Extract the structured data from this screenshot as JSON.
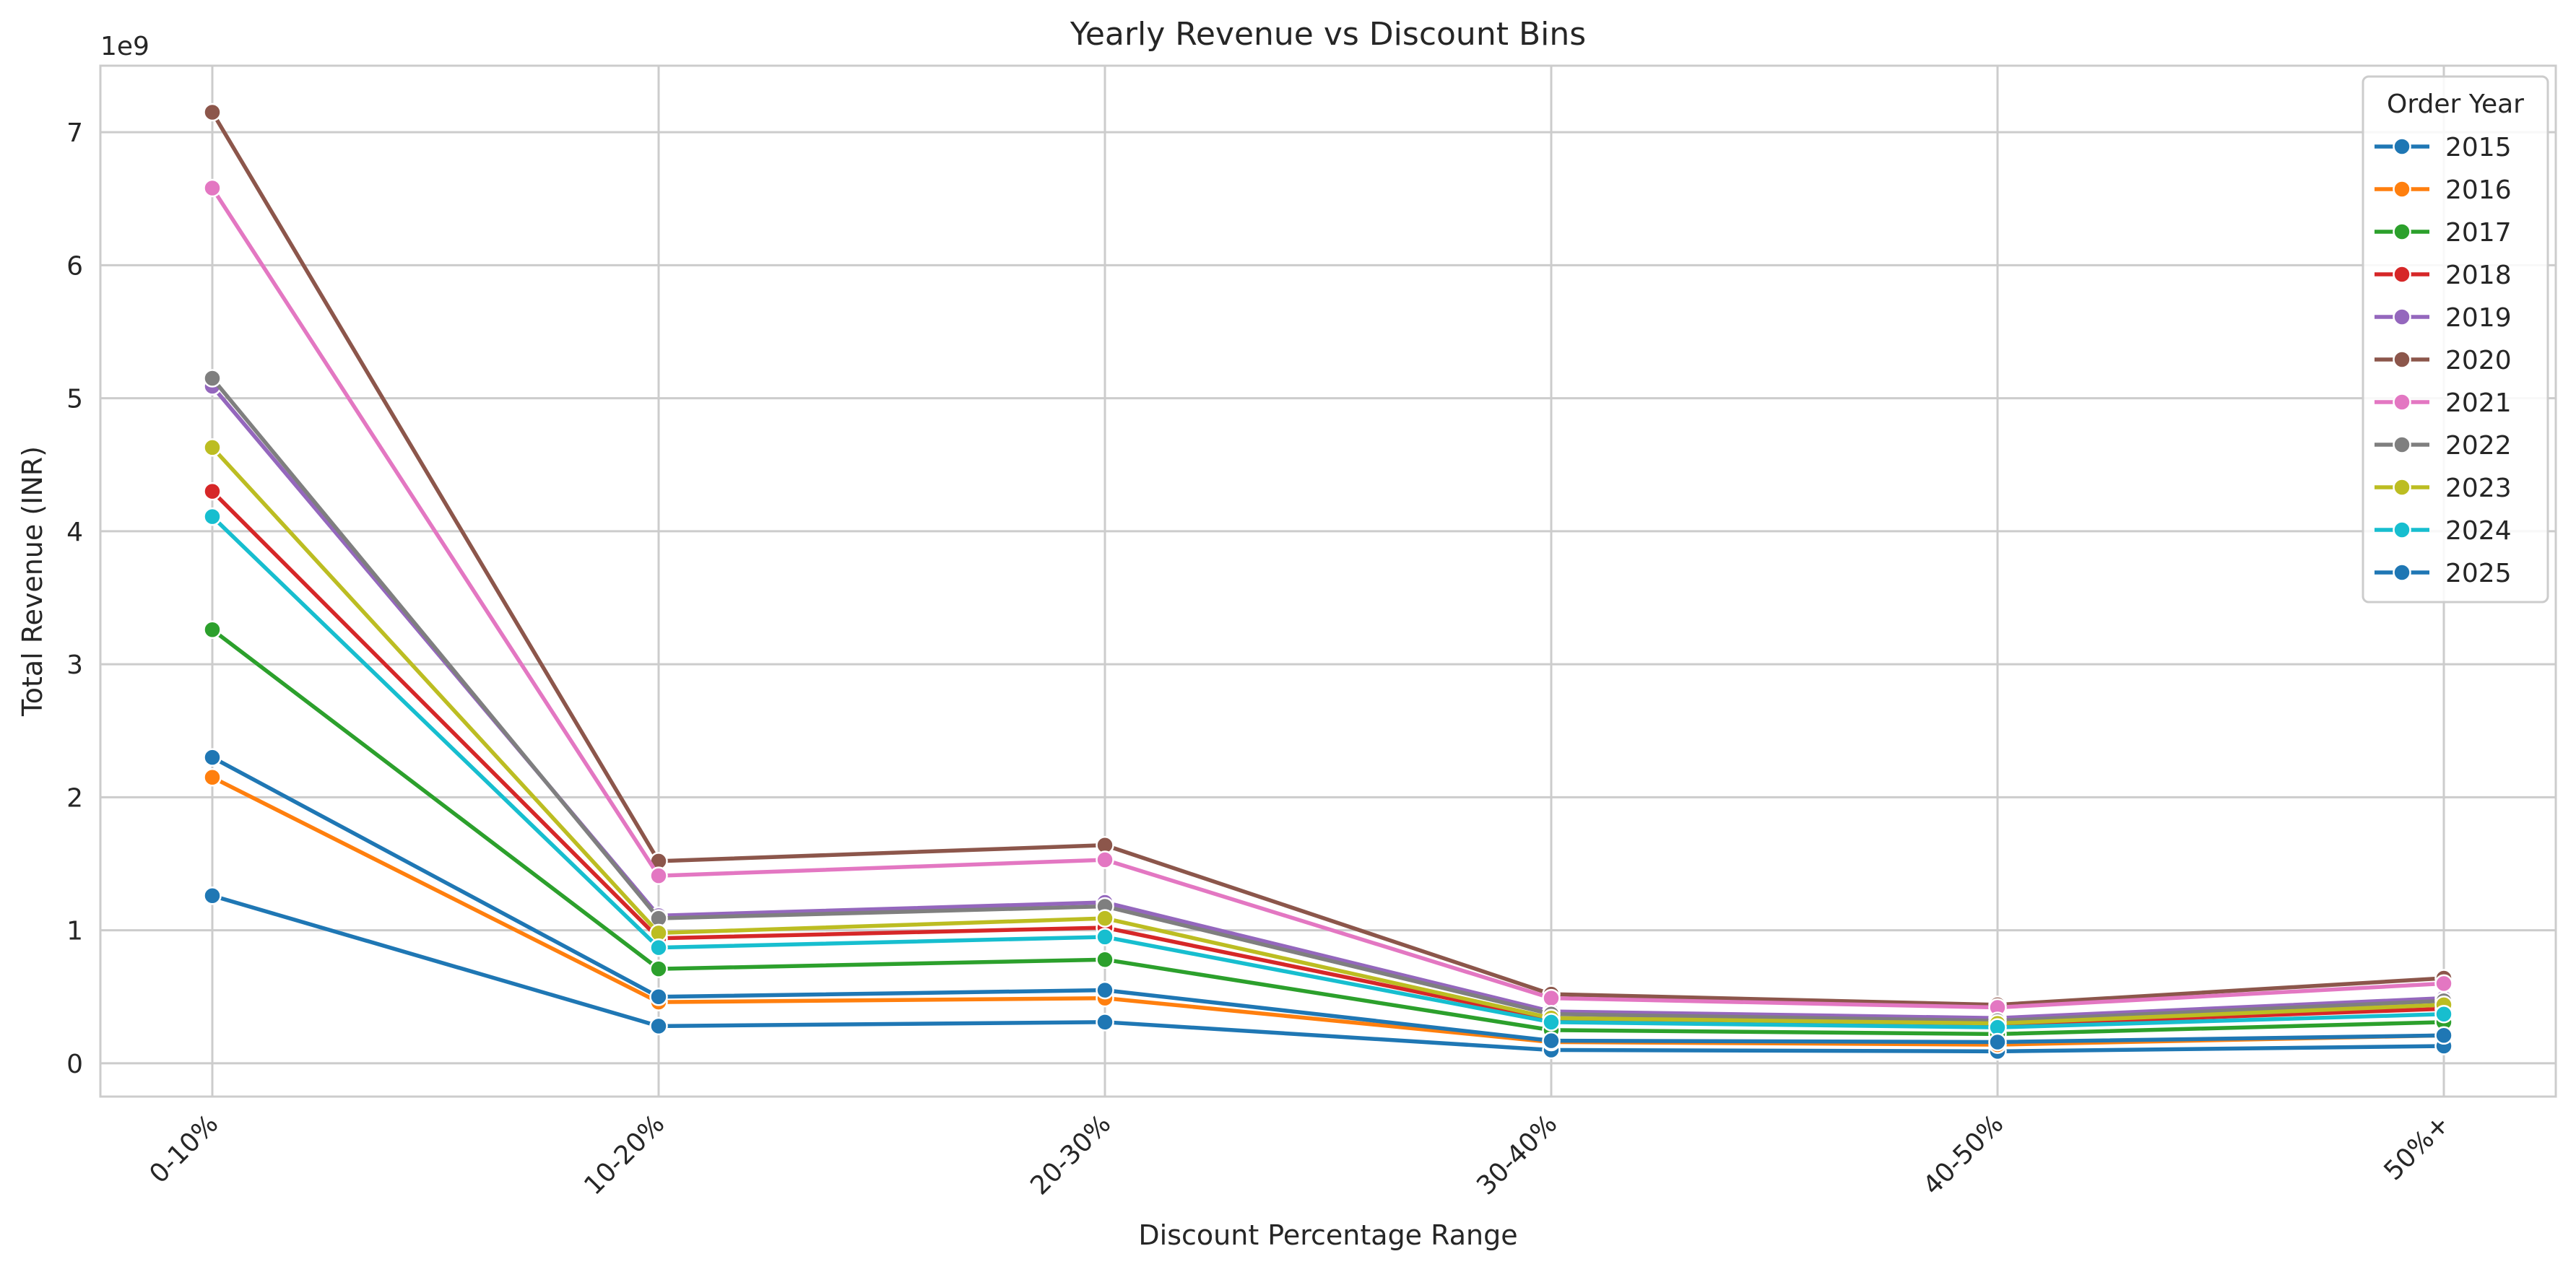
{
  "chart_data": {
    "type": "line",
    "title": "Yearly Revenue vs Discount Bins",
    "xlabel": "Discount Percentage Range",
    "ylabel": "Total Revenue (INR)",
    "y_offset_label": "1e9",
    "categories": [
      "0-10%",
      "10-20%",
      "20-30%",
      "30-40%",
      "40-50%",
      "50%+"
    ],
    "ylim": [
      -0.25,
      7.5
    ],
    "yticks": [
      0,
      1,
      2,
      3,
      4,
      5,
      6,
      7
    ],
    "grid": true,
    "legend": {
      "title": "Order Year",
      "placement": "top-right"
    },
    "series": [
      {
        "name": "2015",
        "color": "#1f77b4",
        "values": [
          1.26,
          0.28,
          0.31,
          0.1,
          0.09,
          0.13
        ]
      },
      {
        "name": "2016",
        "color": "#ff7f0e",
        "values": [
          2.15,
          0.46,
          0.49,
          0.16,
          0.14,
          0.21
        ]
      },
      {
        "name": "2017",
        "color": "#2ca02c",
        "values": [
          3.26,
          0.71,
          0.78,
          0.25,
          0.22,
          0.31
        ]
      },
      {
        "name": "2018",
        "color": "#d62728",
        "values": [
          4.3,
          0.94,
          1.02,
          0.33,
          0.29,
          0.41
        ]
      },
      {
        "name": "2019",
        "color": "#9467bd",
        "values": [
          5.09,
          1.11,
          1.21,
          0.39,
          0.34,
          0.49
        ]
      },
      {
        "name": "2020",
        "color": "#8c564b",
        "values": [
          7.15,
          1.52,
          1.64,
          0.52,
          0.44,
          0.64
        ]
      },
      {
        "name": "2021",
        "color": "#e377c2",
        "values": [
          6.58,
          1.41,
          1.53,
          0.49,
          0.42,
          0.6
        ]
      },
      {
        "name": "2022",
        "color": "#7f7f7f",
        "values": [
          5.15,
          1.09,
          1.18,
          0.37,
          0.32,
          0.47
        ]
      },
      {
        "name": "2023",
        "color": "#bcbd22",
        "values": [
          4.63,
          0.98,
          1.09,
          0.34,
          0.3,
          0.44
        ]
      },
      {
        "name": "2024",
        "color": "#17becf",
        "values": [
          4.11,
          0.87,
          0.95,
          0.31,
          0.27,
          0.37
        ]
      },
      {
        "name": "2025",
        "color": "#1f77b4",
        "values": [
          2.3,
          0.5,
          0.55,
          0.17,
          0.16,
          0.21
        ]
      }
    ]
  }
}
